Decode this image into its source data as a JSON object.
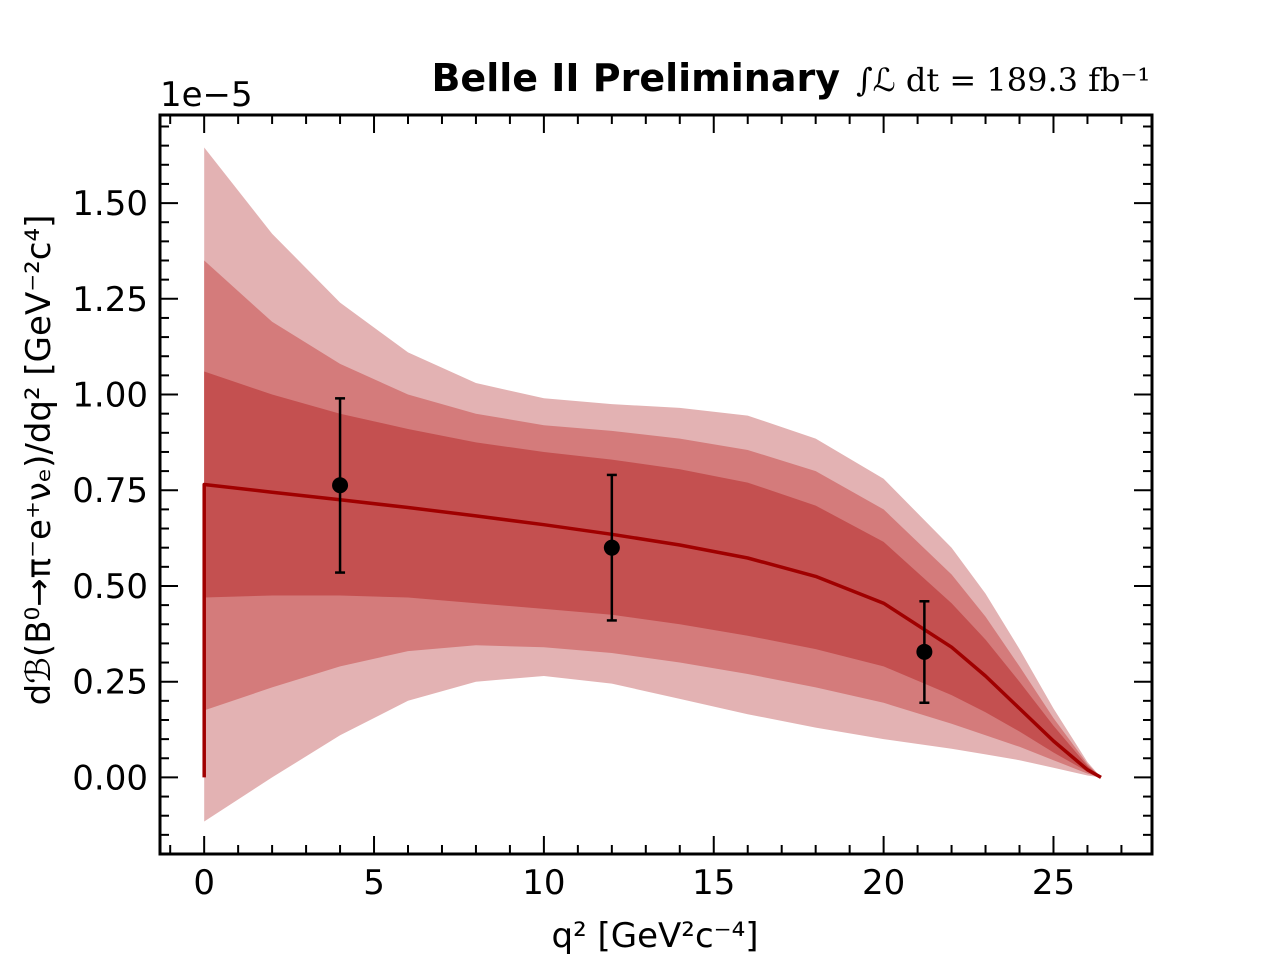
{
  "chart_data": {
    "type": "line",
    "title": "Belle II Preliminary",
    "luminosity_label": "∫ℒ dt = 189.3 fb⁻¹",
    "xlabel": "q² [GeV²c⁻⁴]",
    "ylabel": "dℬ(B⁰→π⁻e⁺νₑ)/dq² [GeV⁻²c⁴]",
    "y_offset_label": "1e−5",
    "y_scale": 1e-05,
    "xlim": [
      -1.3,
      27.9
    ],
    "ylim": [
      -0.2,
      1.73
    ],
    "x_ticks": [
      0,
      5,
      10,
      15,
      20,
      25
    ],
    "x_tick_labels": [
      "0",
      "5",
      "10",
      "15",
      "20",
      "25"
    ],
    "y_ticks": [
      0.0,
      0.25,
      0.5,
      0.75,
      1.0,
      1.25,
      1.5
    ],
    "y_tick_labels": [
      "0.00",
      "0.25",
      "0.50",
      "0.75",
      "1.00",
      "1.25",
      "1.50"
    ],
    "colors": {
      "line": "#a00000",
      "band1": "#c45050",
      "band2": "#d47b7b",
      "band3": "#e3b2b3",
      "points": "#000000"
    },
    "theory": {
      "name": "Fit",
      "x": [
        0.0,
        2.0,
        4.0,
        6.0,
        8.0,
        10.0,
        12.0,
        14.0,
        16.0,
        18.0,
        20.0,
        22.0,
        23.0,
        24.0,
        25.0,
        26.0,
        26.4
      ],
      "central": [
        0.765,
        0.745,
        0.725,
        0.705,
        0.683,
        0.66,
        0.635,
        0.607,
        0.573,
        0.525,
        0.455,
        0.34,
        0.265,
        0.18,
        0.095,
        0.02,
        0.0
      ],
      "band1_lo": [
        0.47,
        0.475,
        0.475,
        0.47,
        0.455,
        0.44,
        0.425,
        0.4,
        0.37,
        0.335,
        0.29,
        0.215,
        0.17,
        0.12,
        0.065,
        0.015,
        0.0
      ],
      "band1_hi": [
        1.06,
        1.0,
        0.95,
        0.91,
        0.875,
        0.85,
        0.83,
        0.805,
        0.77,
        0.71,
        0.615,
        0.455,
        0.36,
        0.25,
        0.135,
        0.03,
        0.0
      ],
      "band2_lo": [
        0.175,
        0.235,
        0.29,
        0.33,
        0.345,
        0.34,
        0.325,
        0.3,
        0.27,
        0.235,
        0.195,
        0.14,
        0.11,
        0.08,
        0.045,
        0.01,
        0.0
      ],
      "band2_hi": [
        1.35,
        1.19,
        1.08,
        1.0,
        0.95,
        0.92,
        0.905,
        0.885,
        0.855,
        0.8,
        0.7,
        0.53,
        0.42,
        0.29,
        0.155,
        0.035,
        0.0
      ],
      "band3_lo": [
        -0.115,
        0.0,
        0.11,
        0.2,
        0.25,
        0.265,
        0.245,
        0.205,
        0.165,
        0.13,
        0.1,
        0.075,
        0.06,
        0.045,
        0.025,
        0.005,
        0.0
      ],
      "band3_hi": [
        1.645,
        1.42,
        1.24,
        1.11,
        1.03,
        0.99,
        0.975,
        0.965,
        0.945,
        0.885,
        0.78,
        0.6,
        0.48,
        0.335,
        0.18,
        0.04,
        0.0
      ]
    },
    "series": [
      {
        "name": "Data",
        "x": [
          4.0,
          12.0,
          21.2
        ],
        "y": [
          0.763,
          0.6,
          0.328
        ],
        "yerr_lo": [
          0.535,
          0.41,
          0.195
        ],
        "yerr_hi": [
          0.99,
          0.79,
          0.46
        ]
      }
    ]
  }
}
